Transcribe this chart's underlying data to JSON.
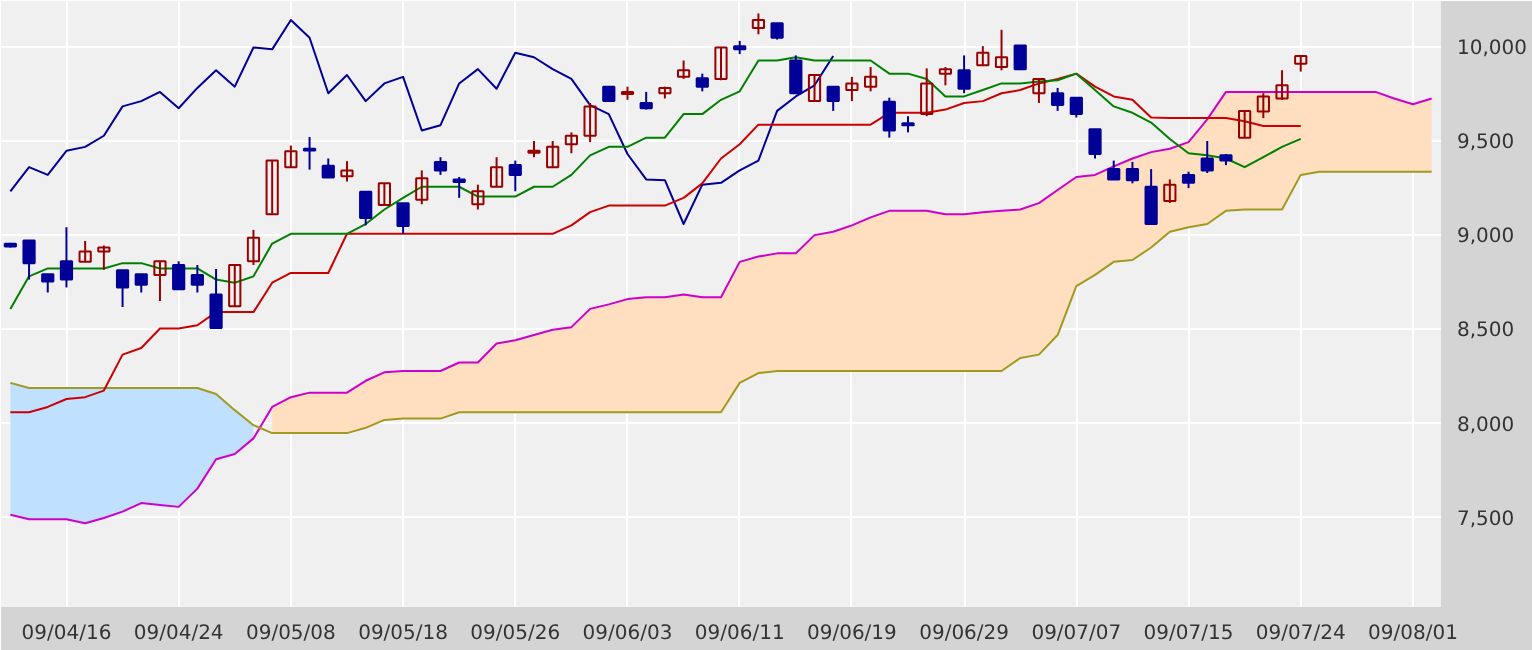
{
  "chart_data": {
    "type": "candlestick",
    "categories": [
      null,
      null,
      null,
      "09/04/16",
      null,
      null,
      null,
      null,
      null,
      "09/04/24",
      null,
      null,
      null,
      null,
      null,
      "09/05/08",
      null,
      null,
      null,
      null,
      null,
      "09/05/18",
      null,
      null,
      null,
      null,
      null,
      "09/05/26",
      null,
      null,
      null,
      null,
      null,
      "09/06/03",
      null,
      null,
      null,
      null,
      null,
      "09/06/11",
      null,
      null,
      null,
      null,
      null,
      "09/06/19",
      null,
      null,
      null,
      null,
      null,
      "09/06/29",
      null,
      null,
      null,
      null,
      null,
      "09/07/07",
      null,
      null,
      null,
      null,
      null,
      "09/07/15",
      null,
      null,
      null,
      null,
      null,
      "09/07/24",
      null,
      null,
      null,
      null,
      null,
      "09/08/01",
      null
    ],
    "ohlc": [
      [
        8950,
        8955,
        8930,
        8935
      ],
      [
        8968,
        8968,
        8760,
        8847
      ],
      [
        8788,
        8788,
        8691,
        8750
      ],
      [
        8857,
        9038,
        8718,
        8760
      ],
      [
        8854,
        8965,
        8854,
        8909
      ],
      [
        8909,
        8941,
        8812,
        8930
      ],
      [
        8809,
        8809,
        8614,
        8718
      ],
      [
        8788,
        8788,
        8691,
        8732
      ],
      [
        8784,
        8857,
        8646,
        8857
      ],
      [
        8837,
        8857,
        8708,
        8708
      ],
      [
        8784,
        8837,
        8691,
        8732
      ],
      [
        8680,
        8816,
        8503,
        8503
      ],
      [
        8618,
        8837,
        8618,
        8837
      ],
      [
        8857,
        9024,
        8837,
        8982
      ],
      [
        9107,
        9392,
        9107,
        9392
      ],
      [
        9357,
        9472,
        9357,
        9441
      ],
      [
        9455,
        9517,
        9344,
        9445
      ],
      [
        9364,
        9403,
        9302,
        9302
      ],
      [
        9309,
        9389,
        9281,
        9340
      ],
      [
        9226,
        9226,
        9048,
        9087
      ],
      [
        9156,
        9271,
        9156,
        9271
      ],
      [
        9166,
        9166,
        9003,
        9045
      ],
      [
        9184,
        9340,
        9160,
        9298
      ],
      [
        9385,
        9410,
        9316,
        9340
      ],
      [
        9292,
        9305,
        9194,
        9278
      ],
      [
        9160,
        9264,
        9132,
        9229
      ],
      [
        9253,
        9410,
        9253,
        9357
      ],
      [
        9368,
        9392,
        9229,
        9316
      ],
      [
        9434,
        9496,
        9410,
        9444
      ],
      [
        9357,
        9496,
        9357,
        9465
      ],
      [
        9479,
        9542,
        9431,
        9524
      ],
      [
        9524,
        9698,
        9490,
        9680
      ],
      [
        9785,
        9785,
        9708,
        9708
      ],
      [
        9746,
        9785,
        9715,
        9757
      ],
      [
        9698,
        9757,
        9663,
        9670
      ],
      [
        9750,
        9785,
        9722,
        9778
      ],
      [
        9837,
        9924,
        9826,
        9872
      ],
      [
        9830,
        9854,
        9760,
        9785
      ],
      [
        9826,
        9993,
        9819,
        9993
      ],
      [
        10000,
        10028,
        9958,
        9983
      ],
      [
        10097,
        10174,
        10063,
        10139
      ],
      [
        10122,
        10122,
        10035,
        10045
      ],
      [
        9924,
        9951,
        9750,
        9750
      ],
      [
        9708,
        9847,
        9708,
        9847
      ],
      [
        9785,
        9785,
        9656,
        9708
      ],
      [
        9767,
        9837,
        9708,
        9802
      ],
      [
        9785,
        9889,
        9760,
        9837
      ],
      [
        9705,
        9726,
        9514,
        9552
      ],
      [
        9590,
        9628,
        9542,
        9580
      ],
      [
        9639,
        9882,
        9628,
        9802
      ],
      [
        9854,
        9889,
        9792,
        9878
      ],
      [
        9872,
        9951,
        9750,
        9774
      ],
      [
        9899,
        10000,
        9899,
        9965
      ],
      [
        9889,
        10087,
        9872,
        9941
      ],
      [
        10003,
        10003,
        9878,
        9878
      ],
      [
        9750,
        9826,
        9698,
        9826
      ],
      [
        9750,
        9778,
        9656,
        9687
      ],
      [
        9726,
        9726,
        9621,
        9639
      ],
      [
        9559,
        9559,
        9403,
        9427
      ],
      [
        9347,
        9392,
        9292,
        9292
      ],
      [
        9347,
        9385,
        9271,
        9288
      ],
      [
        9253,
        9347,
        9055,
        9055
      ],
      [
        9177,
        9292,
        9167,
        9264
      ],
      [
        9316,
        9333,
        9246,
        9274
      ],
      [
        9403,
        9496,
        9326,
        9340
      ],
      [
        9420,
        9427,
        9368,
        9392
      ],
      [
        9514,
        9656,
        9514,
        9656
      ],
      [
        9653,
        9750,
        9618,
        9733
      ],
      [
        9722,
        9872,
        9715,
        9792
      ],
      [
        9906,
        9948,
        9865,
        9948
      ],
      null,
      null,
      null,
      null,
      null,
      null,
      null
    ],
    "colors": [
      "#000099",
      "#000099",
      "#000099",
      "#000099",
      "#990000",
      "#990000",
      "#000099",
      "#000099",
      "#990000",
      "#000099",
      "#000099",
      "#000099",
      "#990000",
      "#990000",
      "#990000",
      "#990000",
      "#000099",
      "#000099",
      "#990000",
      "#000099",
      "#990000",
      "#000099",
      "#990000",
      "#000099",
      "#000099",
      "#990000",
      "#990000",
      "#000099",
      "#990000",
      "#990000",
      "#990000",
      "#990000",
      "#000099",
      "#990000",
      "#000099",
      "#990000",
      "#990000",
      "#000099",
      "#990000",
      "#000099",
      "#990000",
      "#000099",
      "#000099",
      "#990000",
      "#000099",
      "#990000",
      "#990000",
      "#000099",
      "#000099",
      "#990000",
      "#990000",
      "#000099",
      "#990000",
      "#990000",
      "#000099",
      "#990000",
      "#000099",
      "#000099",
      "#000099",
      "#000099",
      "#000099",
      "#000099",
      "#990000",
      "#000099",
      "#000099",
      "#000099",
      "#990000",
      "#990000",
      "#990000",
      "#990000",
      null,
      null,
      null,
      null,
      null,
      null,
      null
    ],
    "series": [
      {
        "type": "line",
        "color": "#cc00cc",
        "colors": [
          null,
          null,
          null,
          null,
          null,
          null,
          null,
          null,
          null,
          null,
          null,
          null,
          null,
          null,
          "#ffdfbf",
          "#ffdfbf",
          "#ffdfbf",
          "#ffdfbf",
          "#ffdfbf",
          "#ffdfbf",
          "#ffdfbf",
          "#ffdfbf",
          "#ffdfbf",
          "#ffdfbf",
          "#ffdfbf",
          "#ffdfbf",
          "#ffdfbf",
          "#ffdfbf",
          "#ffdfbf",
          "#ffdfbf",
          "#ffdfbf",
          "#ffdfbf",
          "#ffdfbf",
          "#ffdfbf",
          "#ffdfbf",
          "#ffdfbf",
          "#ffdfbf",
          "#ffdfbf",
          "#ffdfbf",
          "#ffdfbf",
          "#ffdfbf",
          "#ffdfbf",
          "#ffdfbf",
          "#ffdfbf",
          "#ffdfbf",
          "#ffdfbf",
          "#ffdfbf",
          "#ffdfbf",
          "#ffdfbf",
          "#ffdfbf",
          "#ffdfbf",
          "#ffdfbf",
          "#ffdfbf",
          "#ffdfbf",
          "#ffdfbf",
          "#ffdfbf",
          "#ffdfbf",
          "#ffdfbf",
          "#ffdfbf",
          "#ffdfbf",
          "#ffdfbf",
          "#ffdfbf",
          "#ffdfbf",
          "#ffdfbf",
          "#ffdfbf",
          "#ffdfbf",
          "#ffdfbf",
          "#ffdfbf",
          "#ffdfbf",
          "#ffdfbf",
          "#ffdfbf",
          "#ffdfbf",
          "#ffdfbf",
          "#ffdfbf",
          "#ffdfbf",
          "#ffdfbf",
          "#ffdfbf"
        ],
        "values": [
          7510,
          7486,
          7486,
          7486,
          7465,
          7493,
          7527,
          7572,
          7562,
          7552,
          7649,
          7805,
          7833,
          7916,
          8083,
          8135,
          8159,
          8159,
          8159,
          8222,
          8267,
          8274,
          8274,
          8274,
          8319,
          8319,
          8420,
          8437,
          8465,
          8493,
          8507,
          8604,
          8628,
          8656,
          8666,
          8666,
          8680,
          8666,
          8666,
          8854,
          8882,
          8899,
          8899,
          8996,
          9014,
          9048,
          9090,
          9125,
          9125,
          9125,
          9107,
          9107,
          9118,
          9125,
          9132,
          9166,
          9236,
          9305,
          9316,
          9361,
          9403,
          9437,
          9455,
          9490,
          9611,
          9757,
          9757,
          9757,
          9757,
          9757,
          9757,
          9757,
          9757,
          9757,
          9722,
          9691,
          9722
        ],
        "lower": [
          null,
          null,
          null,
          null,
          null,
          null,
          null,
          null,
          null,
          null,
          null,
          null,
          null,
          null,
          7944,
          7944,
          7944,
          7944,
          7944,
          7972,
          8014,
          8021,
          8021,
          8021,
          8055,
          8055,
          8055,
          8055,
          8055,
          8055,
          8055,
          8055,
          8055,
          8055,
          8055,
          8055,
          8055,
          8055,
          8055,
          8211,
          8263,
          8274,
          8274,
          8274,
          8274,
          8274,
          8274,
          8274,
          8274,
          8274,
          8274,
          8274,
          8274,
          8274,
          8343,
          8361,
          8465,
          8725,
          8785,
          8854,
          8864,
          8930,
          9014,
          9038,
          9055,
          9125,
          9132,
          9132,
          9132,
          9316,
          9333,
          9333,
          9333,
          9333,
          9333,
          9333,
          9333
        ],
        "upper": [
          null,
          null,
          null,
          null,
          null,
          null,
          null,
          null,
          null,
          null,
          null,
          null,
          null,
          null,
          8083,
          8135,
          8159,
          8159,
          8159,
          8222,
          8267,
          8274,
          8274,
          8274,
          8319,
          8319,
          8420,
          8437,
          8465,
          8493,
          8507,
          8604,
          8628,
          8656,
          8666,
          8666,
          8680,
          8666,
          8666,
          8854,
          8882,
          8899,
          8899,
          8996,
          9014,
          9048,
          9090,
          9125,
          9125,
          9125,
          9107,
          9107,
          9118,
          9125,
          9132,
          9166,
          9236,
          9305,
          9316,
          9361,
          9403,
          9437,
          9455,
          9490,
          9611,
          9757,
          9757,
          9757,
          9757,
          9757,
          9757,
          9757,
          9757,
          9757,
          9722,
          9691,
          9722
        ]
      },
      {
        "type": "line",
        "color": "#a09a20",
        "colors": [
          "#bfe0ff",
          "#bfe0ff",
          "#bfe0ff",
          "#bfe0ff",
          "#bfe0ff",
          "#bfe0ff",
          "#bfe0ff",
          "#bfe0ff",
          "#bfe0ff",
          "#bfe0ff",
          "#bfe0ff",
          "#bfe0ff",
          "#bfe0ff",
          "#bfe0ff",
          null,
          null,
          null,
          null,
          null,
          null,
          null,
          null,
          null,
          null,
          null,
          null,
          null,
          null,
          null,
          null,
          null,
          null,
          null,
          null,
          null,
          null,
          null,
          null,
          null,
          null,
          null,
          null,
          null,
          null,
          null,
          null,
          null,
          null,
          null,
          null,
          null,
          null,
          null,
          null,
          null,
          null,
          null,
          null,
          null,
          null,
          null,
          null,
          null,
          null,
          null,
          null,
          null,
          null,
          null,
          null,
          null,
          null,
          null,
          null,
          null,
          null,
          null
        ],
        "values": [
          8211,
          8184,
          8184,
          8184,
          8184,
          8184,
          8184,
          8184,
          8184,
          8184,
          8184,
          8152,
          8066,
          7986,
          7944,
          7944,
          7944,
          7944,
          7944,
          7972,
          8014,
          8021,
          8021,
          8021,
          8055,
          8055,
          8055,
          8055,
          8055,
          8055,
          8055,
          8055,
          8055,
          8055,
          8055,
          8055,
          8055,
          8055,
          8055,
          8211,
          8263,
          8274,
          8274,
          8274,
          8274,
          8274,
          8274,
          8274,
          8274,
          8274,
          8274,
          8274,
          8274,
          8274,
          8343,
          8361,
          8465,
          8725,
          8785,
          8854,
          8864,
          8930,
          9014,
          9038,
          9055,
          9125,
          9132,
          9132,
          9132,
          9316,
          9333,
          9333,
          9333,
          9333,
          9333,
          9333,
          9333
        ],
        "lower": [
          7510,
          7486,
          7486,
          7486,
          7465,
          7493,
          7527,
          7572,
          7562,
          7552,
          7649,
          7805,
          7833,
          7916,
          null,
          null,
          null,
          null,
          null,
          null,
          null,
          null,
          null,
          null,
          null,
          null,
          null,
          null,
          null,
          null,
          null,
          null,
          null,
          null,
          null,
          null,
          null,
          null,
          null,
          null,
          null,
          null,
          null,
          null,
          null,
          null,
          null,
          null,
          null,
          null,
          null,
          null,
          null,
          null,
          null,
          null,
          null,
          null,
          null,
          null,
          null,
          null,
          null,
          null,
          null,
          null,
          null,
          null,
          null,
          null,
          null,
          null,
          null,
          null,
          null,
          null,
          null
        ],
        "upper": [
          8211,
          8184,
          8184,
          8184,
          8184,
          8184,
          8184,
          8184,
          8184,
          8184,
          8184,
          8152,
          8066,
          7986,
          null,
          null,
          null,
          null,
          null,
          null,
          null,
          null,
          null,
          null,
          null,
          null,
          null,
          null,
          null,
          null,
          null,
          null,
          null,
          null,
          null,
          null,
          null,
          null,
          null,
          null,
          null,
          null,
          null,
          null,
          null,
          null,
          null,
          null,
          null,
          null,
          null,
          null,
          null,
          null,
          null,
          null,
          null,
          null,
          null,
          null,
          null,
          null,
          null,
          null,
          null,
          null,
          null,
          null,
          null,
          null,
          null,
          null,
          null,
          null,
          null,
          null,
          null
        ]
      },
      {
        "type": "line",
        "color": "#000099",
        "values": [
          9229,
          9357,
          9316,
          9444,
          9465,
          9524,
          9680,
          9708,
          9757,
          9670,
          9778,
          9872,
          9785,
          9993,
          9983,
          10139,
          10045,
          9750,
          9847,
          9708,
          9802,
          9837,
          9552,
          9580,
          9802,
          9878,
          9774,
          9965,
          9941,
          9878,
          9826,
          9687,
          9639,
          9427,
          9292,
          9288,
          9055,
          9264,
          9274,
          9340,
          9392,
          9656,
          9733,
          9792,
          9948,
          null,
          null,
          null,
          null,
          null,
          null,
          null,
          null,
          null,
          null,
          null,
          null,
          null,
          null,
          null,
          null,
          null,
          null,
          null,
          null,
          null,
          null,
          null,
          null,
          null,
          null,
          null,
          null,
          null,
          null,
          null,
          null
        ]
      },
      {
        "type": "line",
        "color": "#cc0000",
        "values": [
          8055,
          8055,
          8083,
          8125,
          8135,
          8170,
          8361,
          8396,
          8500,
          8500,
          8517,
          8587,
          8587,
          8587,
          8743,
          8795,
          8795,
          8795,
          9003,
          9003,
          9003,
          9003,
          9003,
          9003,
          9003,
          9003,
          9003,
          9003,
          9003,
          9003,
          9048,
          9118,
          9153,
          9153,
          9153,
          9153,
          9194,
          9271,
          9403,
          9479,
          9583,
          9583,
          9583,
          9583,
          9583,
          9583,
          9583,
          9646,
          9646,
          9646,
          9663,
          9698,
          9708,
          9750,
          9767,
          9802,
          9826,
          9854,
          9785,
          9733,
          9715,
          9621,
          9618,
          9618,
          9618,
          9618,
          9601,
          9576,
          9576,
          9576,
          null,
          null,
          null,
          null,
          null,
          null,
          null
        ]
      },
      {
        "type": "line",
        "color": "#008000",
        "values": [
          8604,
          8777,
          8819,
          8819,
          8819,
          8819,
          8847,
          8847,
          8819,
          8819,
          8819,
          8760,
          8743,
          8777,
          8951,
          9003,
          9003,
          9003,
          9003,
          9055,
          9132,
          9194,
          9253,
          9253,
          9253,
          9201,
          9201,
          9201,
          9253,
          9253,
          9316,
          9420,
          9465,
          9465,
          9514,
          9514,
          9639,
          9639,
          9715,
          9760,
          9924,
          9924,
          9941,
          9924,
          9924,
          9924,
          9924,
          9854,
          9854,
          9826,
          9733,
          9733,
          9767,
          9802,
          9802,
          9812,
          9819,
          9854,
          9767,
          9680,
          9646,
          9594,
          9507,
          9431,
          9420,
          9403,
          9357,
          9410,
          9465,
          9507,
          null,
          null,
          null,
          null,
          null,
          null,
          null
        ]
      }
    ],
    "ylim": [
      7020,
      10240
    ],
    "yticks": [
      {
        "value": 7500,
        "label": "7,500"
      },
      {
        "value": 8000,
        "label": "8,000"
      },
      {
        "value": 8500,
        "label": "8,500"
      },
      {
        "value": 9000,
        "label": "9,000"
      },
      {
        "value": 9500,
        "label": "9,500"
      },
      {
        "value": 10000,
        "label": "10,000"
      }
    ],
    "grid": true
  }
}
